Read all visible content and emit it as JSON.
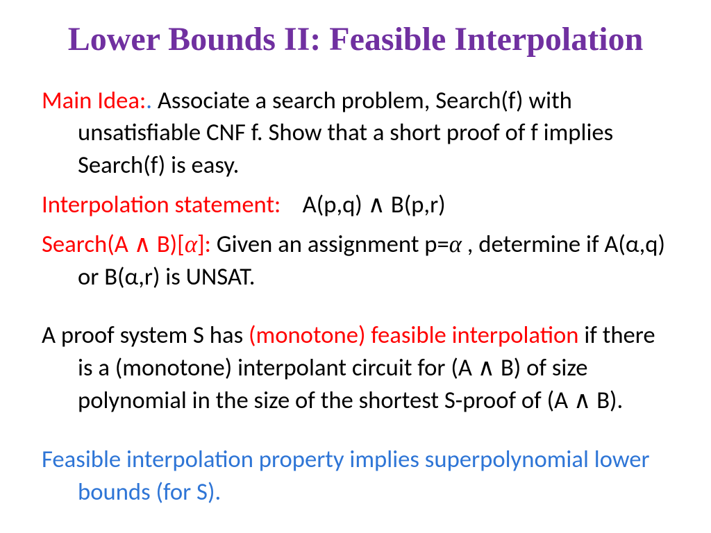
{
  "title": {
    "text": "Lower Bounds II: Feasible Interpolation",
    "color": "#7030a0",
    "fontsize_pt": 36
  },
  "body_fontsize_pt": 26,
  "colors": {
    "red": "#ff0000",
    "black": "#000000",
    "blue": "#2e75d6",
    "background": "#ffffff"
  },
  "paragraphs": {
    "p1": {
      "lead_red": "Main Idea:",
      "lead_blue": ".",
      "rest": " Associate a search problem, Search(f) with unsatisfiable CNF f. Show that a short proof of f implies Search(f) is easy."
    },
    "p2": {
      "lead_red": "Interpolation statement:",
      "rest_prefix": "    A(p,q) ",
      "and": "∧",
      "rest_suffix": " B(p,r)"
    },
    "p3": {
      "lead_red_pre": "Search(A ",
      "lead_red_and": "∧",
      "lead_red_mid": " B)[",
      "lead_red_alpha": "α",
      "lead_red_post": "]:",
      "rest_pre": " Given an assignment p=",
      "rest_alpha": "α",
      "rest_post": " , determine if A(α,q) or B(α,r) is UNSAT."
    },
    "p4": {
      "pre": "A proof system S has ",
      "red": "(monotone) feasible interpolation ",
      "mid1": "if there is a (monotone) interpolant circuit for (A ",
      "and1": "∧",
      "mid2": " B) of size polynomial in the size of the shortest S-proof of (A ",
      "and2": "∧",
      "mid3": " B)."
    },
    "p5": {
      "blue": "Feasible interpolation property implies superpolynomial lower bounds (for S)."
    }
  }
}
